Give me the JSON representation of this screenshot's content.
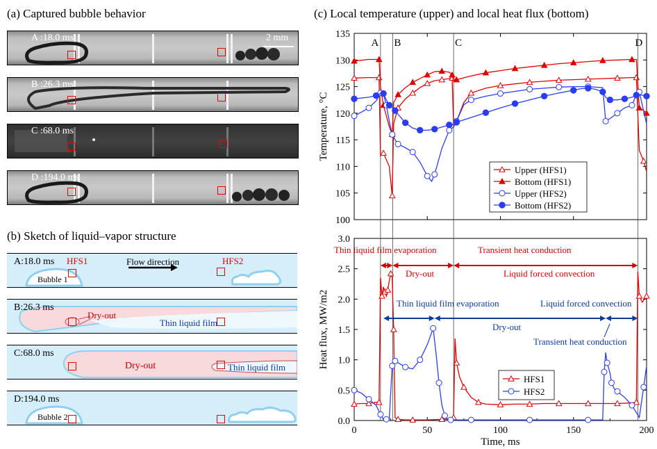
{
  "panel_a": {
    "title": "(a) Captured bubble behavior",
    "scale_label": "2 mm",
    "frames": [
      {
        "label": "A :18.0 ms"
      },
      {
        "label": "B :26.3 ms"
      },
      {
        "label": "C :68.0 ms"
      },
      {
        "label": "D :194.0 ms"
      }
    ]
  },
  "panel_b": {
    "title": "(b) Sketch of liquid–vapor structure",
    "hfs1_label": "HFS1",
    "hfs2_label": "HFS2",
    "flow_label": "Flow direction",
    "rows": [
      {
        "label": "A:18.0 ms",
        "bubble": "Bubble 1"
      },
      {
        "label": "B:26.3 ms",
        "dryout": "Dry-out",
        "film": "Thin liquid film"
      },
      {
        "label": "C:68.0 ms",
        "dryout": "Dry-out",
        "film": "Thin liquid film"
      },
      {
        "label": "D:194.0 ms",
        "bubble": "Bubble 2"
      }
    ]
  },
  "panel_c": {
    "title": "(c) Local temperature (upper) and local heat flux (bottom)",
    "colors": {
      "hfs1": "#e00000",
      "hfs2": "#2a3df0",
      "phase_red": "#d40000",
      "phase_blue": "#0b3b9c"
    },
    "event_labels": [
      "A",
      "B",
      "C",
      "D"
    ],
    "phase_labels": {
      "thin_film_1": "Thin liquid film evaporation",
      "transient_1": "Transient heat conduction",
      "dryout_1": "Dry-out",
      "forced_1": "Liquid forced convection",
      "thin_film_2": "Thin liquid film evaporation",
      "forced_2": "Liquid forced convection",
      "dryout_2": "Dry-out",
      "transient_2": "Transient heat conduction"
    }
  },
  "chart_data": [
    {
      "type": "line",
      "ylabel": "Temperature, °C",
      "xlim": [
        0,
        200
      ],
      "ylim": [
        100,
        135
      ],
      "yticks": [
        100,
        105,
        110,
        115,
        120,
        125,
        130,
        135
      ],
      "event_lines": [
        18,
        26.3,
        68,
        194
      ],
      "legend_position": "center-right",
      "series": [
        {
          "name": "Upper  (HFS1)",
          "color": "#e00000",
          "marker": "open-triangle",
          "x": [
            0,
            10,
            17,
            18,
            20,
            24,
            26,
            27,
            30,
            35,
            40,
            45,
            50,
            55,
            60,
            65,
            67,
            68,
            70,
            75,
            80,
            90,
            100,
            110,
            120,
            130,
            140,
            150,
            160,
            170,
            180,
            190,
            193,
            195,
            198,
            200
          ],
          "y": [
            126.6,
            126.7,
            126.7,
            112,
            112.5,
            110,
            104.5,
            118,
            121,
            122.7,
            123.8,
            124.8,
            125.6,
            126.1,
            126.3,
            126.5,
            126.6,
            117.5,
            118.5,
            122,
            123.8,
            124.7,
            125.2,
            125.5,
            125.8,
            126,
            126.2,
            126.3,
            126.4,
            126.5,
            126.6,
            126.7,
            126.7,
            113,
            111,
            109
          ]
        },
        {
          "name": "Bottom (HFS1)",
          "color": "#e00000",
          "marker": "filled-triangle",
          "x": [
            0,
            10,
            17,
            18,
            20,
            24,
            26,
            27,
            30,
            35,
            40,
            45,
            50,
            55,
            60,
            65,
            67,
            68,
            70,
            80,
            90,
            100,
            110,
            120,
            130,
            140,
            150,
            160,
            170,
            180,
            190,
            193,
            195,
            198,
            200
          ],
          "y": [
            129.8,
            130.1,
            130.1,
            125,
            121.5,
            117.5,
            116,
            122,
            123.5,
            124.8,
            125.8,
            126.5,
            127.2,
            127.8,
            127.9,
            127.7,
            127.2,
            126,
            126.3,
            127,
            127.6,
            128,
            128.4,
            128.7,
            129,
            129.3,
            129.5,
            129.7,
            129.9,
            130,
            130.1,
            130.1,
            121,
            120.5,
            120
          ]
        },
        {
          "name": "Upper  (HFS2)",
          "color": "#2a3df0",
          "marker": "open-circle",
          "x": [
            0,
            5,
            10,
            15,
            18,
            20,
            22,
            24,
            26,
            28,
            30,
            35,
            40,
            45,
            50,
            53,
            55,
            60,
            65,
            68,
            70,
            75,
            80,
            90,
            100,
            110,
            120,
            130,
            140,
            150,
            160,
            170,
            172,
            175,
            180,
            185,
            190,
            193,
            195,
            200
          ],
          "y": [
            119.5,
            120.2,
            121,
            122.3,
            123.8,
            123.6,
            121.5,
            118.5,
            116,
            115,
            114.2,
            113.5,
            112.7,
            110.8,
            108.2,
            107.2,
            108.5,
            113.4,
            116.8,
            117.4,
            118.5,
            121.6,
            122.5,
            123.2,
            123.7,
            124.1,
            124.5,
            124.7,
            124.9,
            125,
            125,
            124.8,
            118.5,
            119,
            120,
            121,
            121.5,
            123.5,
            124,
            118
          ]
        },
        {
          "name": "Bottom (HFS2)",
          "color": "#2a3df0",
          "marker": "filled-circle",
          "x": [
            0,
            10,
            15,
            18,
            20,
            22,
            24,
            26,
            28,
            30,
            35,
            40,
            45,
            50,
            55,
            60,
            65,
            68,
            70,
            80,
            90,
            100,
            110,
            120,
            130,
            140,
            150,
            155,
            160,
            165,
            170,
            172,
            175,
            180,
            185,
            190,
            193,
            195,
            200
          ],
          "y": [
            122.7,
            123,
            123.3,
            123.7,
            123.7,
            122.5,
            121.5,
            121,
            120.5,
            119.8,
            118.2,
            117.2,
            116.8,
            116.8,
            117,
            117.4,
            117.8,
            118,
            118.3,
            119.2,
            120.1,
            121,
            121.8,
            122.5,
            123.2,
            123.8,
            124.3,
            124.6,
            124.7,
            124.5,
            124,
            123,
            122.5,
            122.5,
            122.7,
            123,
            123.4,
            123.5,
            123.2
          ]
        }
      ]
    },
    {
      "type": "line",
      "xlabel": "Time, ms",
      "ylabel": "Heat flux, MW/m2",
      "xlim": [
        0,
        200
      ],
      "ylim": [
        0,
        3.0
      ],
      "xticks": [
        0,
        50,
        100,
        150,
        200
      ],
      "yticks": [
        0.0,
        0.5,
        1.0,
        1.5,
        2.0,
        2.5,
        3.0
      ],
      "legend_position": "bottom-center",
      "series": [
        {
          "name": "HFS1",
          "color": "#e00000",
          "marker": "open-triangle",
          "x": [
            0,
            5,
            10,
            15,
            17,
            18,
            19,
            20,
            21,
            22,
            23,
            24,
            25,
            26,
            27,
            28,
            30,
            35,
            40,
            50,
            60,
            66,
            68,
            69,
            70,
            72,
            75,
            80,
            85,
            90,
            100,
            110,
            120,
            130,
            140,
            150,
            160,
            170,
            180,
            190,
            193,
            194,
            195,
            197,
            200
          ],
          "y": [
            0.27,
            0.28,
            0.28,
            0.3,
            0.3,
            2.35,
            2.05,
            2.2,
            2.12,
            2.05,
            2.15,
            2.3,
            2.42,
            2.35,
            1.5,
            0.05,
            0.02,
            0.01,
            0.01,
            0.01,
            0.02,
            0.02,
            0.05,
            1.35,
            0.95,
            0.72,
            0.55,
            0.38,
            0.3,
            0.27,
            0.26,
            0.27,
            0.27,
            0.28,
            0.28,
            0.28,
            0.28,
            0.28,
            0.28,
            0.29,
            0.3,
            2.45,
            2.05,
            1.95,
            2.05
          ]
        },
        {
          "name": "HFS2",
          "color": "#2a3df0",
          "marker": "open-circle",
          "x": [
            0,
            5,
            10,
            15,
            18,
            20,
            22,
            24,
            26,
            27,
            28,
            30,
            35,
            40,
            45,
            50,
            54,
            56,
            58,
            60,
            62,
            64,
            66,
            70,
            80,
            100,
            120,
            140,
            160,
            170,
            171,
            172,
            173,
            175,
            176,
            178,
            180,
            185,
            190,
            195,
            198,
            200
          ],
          "y": [
            0.5,
            0.45,
            0.35,
            0.25,
            0.1,
            0.02,
            0.02,
            0.02,
            0.9,
            1.0,
            0.98,
            0.95,
            0.88,
            0.85,
            1.0,
            1.25,
            1.52,
            1.1,
            0.62,
            0.25,
            0.08,
            0.02,
            0.01,
            0.01,
            0.01,
            0.01,
            0.01,
            0.01,
            0.01,
            0.01,
            0.8,
            1.12,
            0.95,
            0.78,
            0.62,
            0.52,
            0.48,
            0.38,
            0.25,
            0.05,
            0.55,
            0.9
          ]
        }
      ]
    }
  ]
}
